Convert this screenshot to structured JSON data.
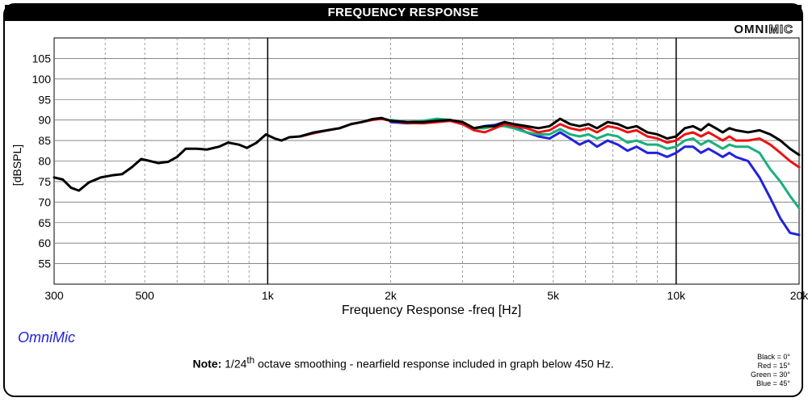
{
  "title": "FREQUENCY RESPONSE",
  "brand": {
    "logo_a": "OMNI",
    "logo_b": "MIC",
    "script": "OmniMic"
  },
  "note": {
    "label": "Note:",
    "text_a": "1/24",
    "sup": "th",
    "text_b": " octave smoothing - nearfield response included in graph below 450 Hz."
  },
  "legend_key": [
    "Black = 0°",
    "Red = 15°",
    "Green = 30°",
    "Blue = 45°"
  ],
  "chart_data": {
    "type": "line",
    "title": "FREQUENCY RESPONSE",
    "xlabel": "Frequency Response -freq [Hz]",
    "ylabel": "[dBSPL]",
    "x_scale": "log",
    "xlim": [
      300,
      20000
    ],
    "ylim": [
      50,
      110
    ],
    "x_ticks": [
      300,
      500,
      1000,
      2000,
      5000,
      10000,
      20000
    ],
    "x_tick_labels": [
      "300",
      "500",
      "1k",
      "2k",
      "5k",
      "10k",
      "20k"
    ],
    "y_ticks": [
      55,
      60,
      65,
      70,
      75,
      80,
      85,
      90,
      95,
      100,
      105
    ],
    "grid": true,
    "series": [
      {
        "name": "Black = 0°",
        "color": "#000000",
        "points": [
          [
            300,
            76
          ],
          [
            315,
            75.5
          ],
          [
            330,
            73.5
          ],
          [
            345,
            72.8
          ],
          [
            365,
            74.8
          ],
          [
            390,
            76
          ],
          [
            415,
            76.5
          ],
          [
            440,
            76.8
          ],
          [
            465,
            78.5
          ],
          [
            490,
            80.5
          ],
          [
            515,
            80
          ],
          [
            540,
            79.5
          ],
          [
            570,
            79.8
          ],
          [
            600,
            81
          ],
          [
            630,
            83
          ],
          [
            670,
            83
          ],
          [
            710,
            82.8
          ],
          [
            760,
            83.5
          ],
          [
            800,
            84.5
          ],
          [
            850,
            84
          ],
          [
            890,
            83.2
          ],
          [
            940,
            84.5
          ],
          [
            990,
            86.5
          ],
          [
            1040,
            85.5
          ],
          [
            1080,
            85
          ],
          [
            1130,
            85.8
          ],
          [
            1200,
            86
          ],
          [
            1300,
            87
          ],
          [
            1400,
            87.5
          ],
          [
            1500,
            88
          ],
          [
            1600,
            89
          ],
          [
            1700,
            89.5
          ],
          [
            1800,
            90.2
          ],
          [
            1900,
            90.5
          ],
          [
            2000,
            89.8
          ],
          [
            2200,
            89.5
          ],
          [
            2400,
            89.5
          ],
          [
            2600,
            89.8
          ],
          [
            2800,
            90
          ],
          [
            3000,
            89.5
          ],
          [
            3200,
            88
          ],
          [
            3400,
            88.5
          ],
          [
            3600,
            88.5
          ],
          [
            3800,
            89.5
          ],
          [
            4000,
            89
          ],
          [
            4300,
            88.5
          ],
          [
            4600,
            88
          ],
          [
            4900,
            88.5
          ],
          [
            5200,
            90.3
          ],
          [
            5500,
            89
          ],
          [
            5800,
            88.5
          ],
          [
            6100,
            89
          ],
          [
            6400,
            88
          ],
          [
            6800,
            89.5
          ],
          [
            7200,
            89
          ],
          [
            7600,
            88
          ],
          [
            8000,
            88.5
          ],
          [
            8500,
            87
          ],
          [
            9000,
            86.5
          ],
          [
            9500,
            85.5
          ],
          [
            10000,
            86
          ],
          [
            10500,
            88
          ],
          [
            11000,
            88.5
          ],
          [
            11500,
            87.5
          ],
          [
            12000,
            89
          ],
          [
            12500,
            88
          ],
          [
            13000,
            87
          ],
          [
            13500,
            88
          ],
          [
            14000,
            87.5
          ],
          [
            15000,
            87
          ],
          [
            16000,
            87.5
          ],
          [
            17000,
            86.5
          ],
          [
            18000,
            85
          ],
          [
            19000,
            83
          ],
          [
            20000,
            81.5
          ]
        ]
      },
      {
        "name": "Red = 15°",
        "color": "#ee1111",
        "points": [
          [
            1200,
            86
          ],
          [
            1300,
            86.8
          ],
          [
            1400,
            87.5
          ],
          [
            1500,
            88
          ],
          [
            1600,
            89
          ],
          [
            1700,
            89.5
          ],
          [
            1800,
            90
          ],
          [
            1900,
            90.3
          ],
          [
            2000,
            89.8
          ],
          [
            2200,
            89.3
          ],
          [
            2400,
            89.2
          ],
          [
            2600,
            89.5
          ],
          [
            2800,
            89.8
          ],
          [
            3000,
            89
          ],
          [
            3200,
            87.5
          ],
          [
            3400,
            87
          ],
          [
            3600,
            88
          ],
          [
            3800,
            89
          ],
          [
            4000,
            88.5
          ],
          [
            4300,
            88
          ],
          [
            4600,
            87
          ],
          [
            4900,
            87.5
          ],
          [
            5200,
            89
          ],
          [
            5500,
            88
          ],
          [
            5800,
            87.5
          ],
          [
            6100,
            88
          ],
          [
            6400,
            87
          ],
          [
            6800,
            88.5
          ],
          [
            7200,
            88
          ],
          [
            7600,
            87
          ],
          [
            8000,
            87.5
          ],
          [
            8500,
            86
          ],
          [
            9000,
            85.5
          ],
          [
            9500,
            84.5
          ],
          [
            10000,
            85
          ],
          [
            10500,
            86.5
          ],
          [
            11000,
            87
          ],
          [
            11500,
            86
          ],
          [
            12000,
            87
          ],
          [
            12500,
            86
          ],
          [
            13000,
            85
          ],
          [
            13500,
            86
          ],
          [
            14000,
            85
          ],
          [
            15000,
            85
          ],
          [
            16000,
            85.5
          ],
          [
            17000,
            84
          ],
          [
            18000,
            82
          ],
          [
            19000,
            80
          ],
          [
            20000,
            78.5
          ]
        ]
      },
      {
        "name": "Green = 30°",
        "color": "#19b07a",
        "points": [
          [
            2000,
            90
          ],
          [
            2200,
            89.5
          ],
          [
            2400,
            89.8
          ],
          [
            2600,
            90.3
          ],
          [
            2800,
            90
          ],
          [
            3000,
            89
          ],
          [
            3200,
            88
          ],
          [
            3400,
            88
          ],
          [
            3600,
            88.5
          ],
          [
            3800,
            88.5
          ],
          [
            4000,
            88
          ],
          [
            4300,
            87
          ],
          [
            4600,
            86.5
          ],
          [
            4900,
            86.5
          ],
          [
            5200,
            87.8
          ],
          [
            5500,
            86.5
          ],
          [
            5800,
            86
          ],
          [
            6100,
            86.5
          ],
          [
            6400,
            85.5
          ],
          [
            6800,
            86.5
          ],
          [
            7200,
            86
          ],
          [
            7600,
            84.5
          ],
          [
            8000,
            85
          ],
          [
            8500,
            84
          ],
          [
            9000,
            84
          ],
          [
            9500,
            83
          ],
          [
            10000,
            83.5
          ],
          [
            10500,
            85
          ],
          [
            11000,
            85.5
          ],
          [
            11500,
            84
          ],
          [
            12000,
            85
          ],
          [
            12500,
            84
          ],
          [
            13000,
            83
          ],
          [
            13500,
            84
          ],
          [
            14000,
            83.5
          ],
          [
            15000,
            83.5
          ],
          [
            16000,
            82
          ],
          [
            17000,
            78
          ],
          [
            18000,
            75
          ],
          [
            19000,
            71.5
          ],
          [
            20000,
            68.5
          ]
        ]
      },
      {
        "name": "Blue = 45°",
        "color": "#2222dd",
        "points": [
          [
            2000,
            89.5
          ],
          [
            2200,
            89.2
          ],
          [
            2400,
            89.3
          ],
          [
            2600,
            89.8
          ],
          [
            2800,
            89.8
          ],
          [
            3000,
            89
          ],
          [
            3200,
            88
          ],
          [
            3400,
            88.5
          ],
          [
            3600,
            88.8
          ],
          [
            3800,
            89.5
          ],
          [
            4000,
            88.5
          ],
          [
            4300,
            87
          ],
          [
            4600,
            86
          ],
          [
            4900,
            85.5
          ],
          [
            5200,
            87
          ],
          [
            5500,
            85.5
          ],
          [
            5800,
            84
          ],
          [
            6100,
            85
          ],
          [
            6400,
            83.5
          ],
          [
            6800,
            85
          ],
          [
            7200,
            84
          ],
          [
            7600,
            82.5
          ],
          [
            8000,
            83.5
          ],
          [
            8500,
            82
          ],
          [
            9000,
            82
          ],
          [
            9500,
            81
          ],
          [
            10000,
            82
          ],
          [
            10500,
            83.5
          ],
          [
            11000,
            83.5
          ],
          [
            11500,
            82
          ],
          [
            12000,
            83
          ],
          [
            12500,
            82
          ],
          [
            13000,
            81
          ],
          [
            13500,
            82
          ],
          [
            14000,
            81
          ],
          [
            15000,
            80
          ],
          [
            16000,
            76
          ],
          [
            17000,
            71
          ],
          [
            18000,
            66
          ],
          [
            19000,
            62.5
          ],
          [
            20000,
            62
          ]
        ]
      }
    ]
  }
}
